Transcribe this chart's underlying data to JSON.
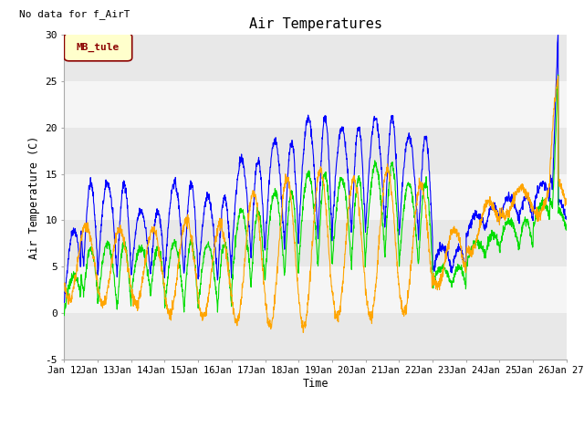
{
  "title": "Air Temperatures",
  "top_left_text": "No data for f_AirT",
  "ylabel": "Air Temperature (C)",
  "xlabel": "Time",
  "ylim": [
    -5,
    30
  ],
  "x_tick_labels": [
    "Jan 12",
    "Jan 13",
    "Jan 14",
    "Jan 15",
    "Jan 16",
    "Jan 17",
    "Jan 18",
    "Jan 19",
    "Jan 20",
    "Jan 21",
    "Jan 22",
    "Jan 23",
    "Jan 24",
    "Jan 25",
    "Jan 26",
    "Jan 27"
  ],
  "legend_box_text": "MB_tule",
  "legend_box_facecolor": "#ffffcc",
  "legend_box_edgecolor": "#8b0000",
  "legend_box_textcolor": "#8b0000",
  "line_colors": {
    "li75_t": "#0000ff",
    "li77_temp": "#00dd00",
    "Tsonic": "#ffa500"
  },
  "bg_stripe_light": "#e8e8e8",
  "bg_stripe_white": "#f5f5f5",
  "y_ticks": [
    -5,
    0,
    5,
    10,
    15,
    20,
    25,
    30
  ]
}
